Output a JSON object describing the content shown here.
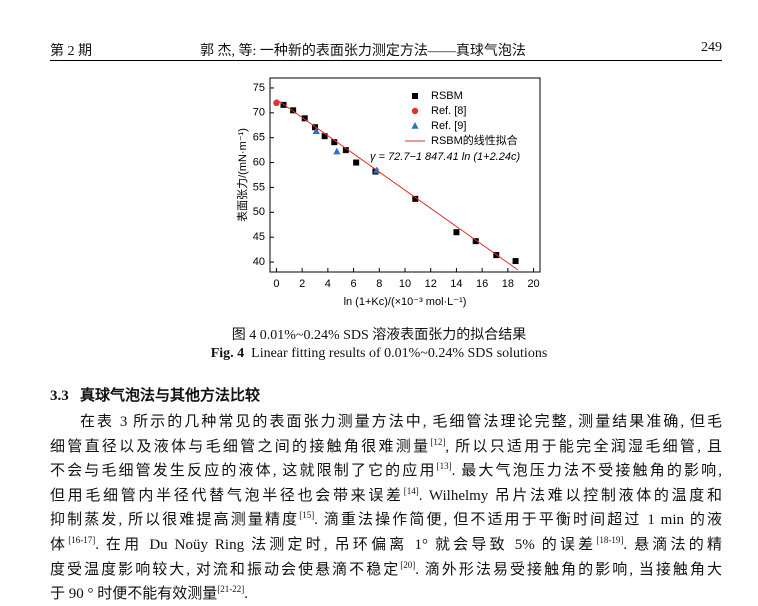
{
  "header": {
    "issue": "第 2 期",
    "running_title": "郭 杰, 等: 一种新的表面张力测定方法——真球气泡法",
    "page": "249"
  },
  "chart_data": {
    "type": "scatter",
    "y_label": "表面张力/(mN·m⁻¹)",
    "x_label": "ln (1+Kc)/(×10⁻³ mol·L⁻¹)",
    "annotation": "γ = 72.7−1 847.41 ln (1+2.24c)",
    "xlim": [
      -0.5,
      20.5
    ],
    "ylim": [
      38,
      77
    ],
    "xticks": [
      0,
      2,
      4,
      6,
      8,
      10,
      12,
      14,
      16,
      18,
      20
    ],
    "yticks": [
      40,
      45,
      50,
      55,
      60,
      65,
      70,
      75
    ],
    "series": [
      {
        "name": "RSBM",
        "color": "#000000",
        "marker": "square",
        "x": [
          0.55,
          1.3,
          2.2,
          3.0,
          3.75,
          4.5,
          5.4,
          6.2,
          7.7,
          10.8,
          14.0,
          15.5,
          17.1,
          18.6
        ],
        "values": [
          71.6,
          70.5,
          68.9,
          67.1,
          65.3,
          64.1,
          62.5,
          60.0,
          58.2,
          52.7,
          46.0,
          44.2,
          41.4,
          40.2
        ]
      },
      {
        "name": "Ref. [8]",
        "color": "#e03030",
        "marker": "circle",
        "x": [
          0
        ],
        "values": [
          72.0
        ]
      },
      {
        "name": "Ref. [9]",
        "color": "#3070c0",
        "marker": "triangle",
        "x": [
          3.1,
          4.7,
          7.8
        ],
        "values": [
          66.3,
          62.2,
          58.4
        ]
      },
      {
        "name": "RSBM的线性拟合",
        "color": "#e03030",
        "marker": "line",
        "x": [
          0,
          18.8
        ],
        "values": [
          72.7,
          38.4
        ]
      }
    ]
  },
  "caption": {
    "zh": "图 4  0.01%~0.24% SDS 溶液表面张力的拟合结果",
    "en_label": "Fig. 4",
    "en": "Linear fitting results of 0.01%~0.24% SDS solutions"
  },
  "section": {
    "number": "3.3",
    "title": "真球气泡法与其他方法比较"
  },
  "paragraph": [
    [
      "在表 3 所示的几种常见的表面张力测量方法中, 毛细管法理论完整, 测量结果准确, 但毛"
    ],
    [
      "细管直径以及液体与毛细管之间的接触角很难测量",
      {
        "sup": "[12]"
      },
      ", 所以只适用于能完全润湿毛细管, 且"
    ],
    [
      "不会与毛细管发生反应的液体, 这就限制了它的应用",
      {
        "sup": "[13]"
      },
      ". 最大气泡压力法不受接触角的影响,"
    ],
    [
      "但用毛细管内半径代替气泡半径也会带来误差",
      {
        "sup": "[14]"
      },
      ". Wilhelmy 吊片法难以控制液体的温度和"
    ],
    [
      "抑制蒸发, 所以很难提高测量精度",
      {
        "sup": "[15]"
      },
      ". 滴重法操作简便, 但不适用于平衡时间超过 1 min 的液"
    ],
    [
      "体",
      {
        "sup": "[16-17]"
      },
      ". 在用 Du Noüy Ring 法测定时, 吊环偏离 1° 就会导致 5% 的误差",
      {
        "sup": "[18-19]"
      },
      ". 悬滴法的精"
    ],
    [
      "度受温度影响较大, 对流和振动会使悬滴不稳定",
      {
        "sup": "[20]"
      },
      ". 滴外形法易受接触角的影响, 当接触角大"
    ],
    [
      "于 90 ° 时便不能有效测量",
      {
        "sup": "[21-22]"
      },
      "."
    ]
  ]
}
